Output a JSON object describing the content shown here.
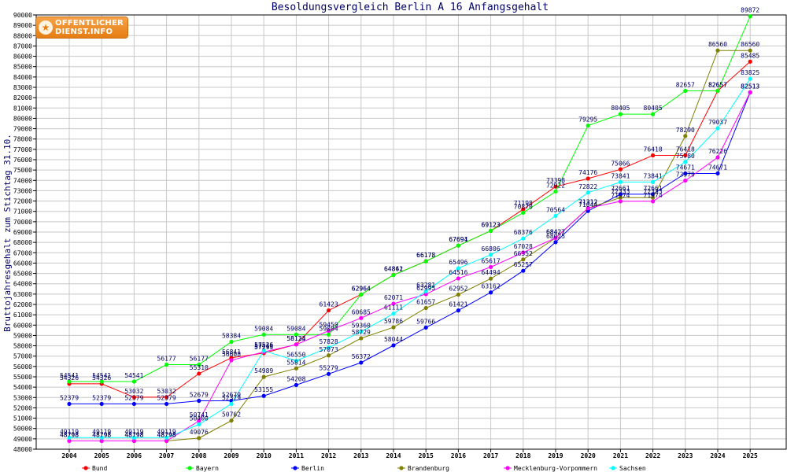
{
  "chart_data": {
    "type": "line",
    "title": "Besoldungsvergleich Berlin A 16 Anfangsgehalt",
    "ylabel": "Bruttojahresgehalt zum Stichtag 31.10.",
    "xlabel": "",
    "ylim": [
      48000,
      90000
    ],
    "ytick_step": 1000,
    "grid": true,
    "legend_position": "bottom",
    "categories": [
      "2004",
      "2005",
      "2006",
      "2007",
      "2008",
      "2009",
      "2010",
      "2011",
      "2012",
      "2013",
      "2014",
      "2015",
      "2016",
      "2017",
      "2018",
      "2019",
      "2020",
      "2021",
      "2022",
      "2023",
      "2024",
      "2025"
    ],
    "series": [
      {
        "name": "Bund",
        "color": "#ff0000",
        "values": [
          54326,
          54326,
          53032,
          53032,
          55310,
          56841,
          57293,
          58134,
          61423,
          62964,
          64861,
          66178,
          67691,
          69123,
          71198,
          73398,
          74176,
          75066,
          76418,
          76418,
          82657,
          85485
        ]
      },
      {
        "name": "Bayern",
        "color": "#00ff00",
        "values": [
          54541,
          54541,
          54541,
          56177,
          56177,
          58384,
          59084,
          59084,
          59084,
          62964,
          64842,
          66173,
          67694,
          69123,
          70870,
          72922,
          79295,
          80405,
          80405,
          82657,
          82657,
          89872
        ]
      },
      {
        "name": "Berlin",
        "color": "#0000ff",
        "values": [
          52379,
          52379,
          52379,
          52379,
          52679,
          52679,
          53155,
          54208,
          55279,
          56372,
          58044,
          59766,
          61421,
          63162,
          65257,
          68025,
          71044,
          72661,
          72661,
          74671,
          74671,
          82513
        ]
      },
      {
        "name": "Brandenburg",
        "color": "#808000",
        "values": [
          48798,
          48798,
          48798,
          48798,
          49076,
          50762,
          54989,
          55814,
          57073,
          58729,
          59786,
          61657,
          62952,
          64494,
          66352,
          68427,
          71312,
          72333,
          72333,
          78290,
          86560,
          86560
        ]
      },
      {
        "name": "Mecklenburg-Vorpommern",
        "color": "#ff00ff",
        "values": [
          48798,
          48798,
          48798,
          48798,
          50741,
          56608,
          57410,
          58123,
          59450,
          60685,
          62071,
          62995,
          64516,
          65617,
          67028,
          68427,
          71312,
          71974,
          71974,
          73979,
          76226,
          82513
        ]
      },
      {
        "name": "Sachsen",
        "color": "#00ffff",
        "values": [
          49119,
          49119,
          49119,
          49119,
          50400,
          52379,
          57526,
          56550,
          57828,
          59360,
          61111,
          63281,
          65496,
          66806,
          68376,
          70564,
          72822,
          73841,
          73841,
          75780,
          79037,
          83825
        ]
      }
    ]
  },
  "logo": {
    "line1": "OFFENTLICHER",
    "line2": "DIENST.INFO"
  }
}
